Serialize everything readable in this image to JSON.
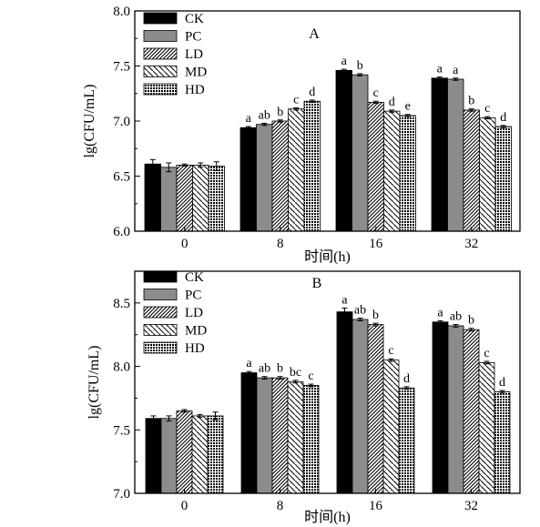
{
  "chart_data": [
    {
      "type": "bar",
      "panel_label": "A",
      "categories": [
        "0",
        "8",
        "16",
        "32"
      ],
      "series": [
        {
          "name": "CK",
          "values": [
            6.61,
            6.94,
            7.46,
            7.39
          ],
          "errors": [
            0.04,
            0.01,
            0.01,
            0.01
          ],
          "letters": [
            "",
            "a",
            "a",
            "a"
          ]
        },
        {
          "name": "PC",
          "values": [
            6.58,
            6.97,
            7.42,
            7.38
          ],
          "errors": [
            0.04,
            0.01,
            0.01,
            0.01
          ],
          "letters": [
            "",
            "ab",
            "b",
            "a"
          ]
        },
        {
          "name": "LD",
          "values": [
            6.6,
            7.0,
            7.17,
            7.1
          ],
          "errors": [
            0.01,
            0.01,
            0.01,
            0.01
          ],
          "letters": [
            "",
            "b",
            "c",
            "b"
          ]
        },
        {
          "name": "MD",
          "values": [
            6.6,
            7.11,
            7.09,
            7.03
          ],
          "errors": [
            0.02,
            0.01,
            0.01,
            0.01
          ],
          "letters": [
            "",
            "c",
            "d",
            "c"
          ]
        },
        {
          "name": "HD",
          "values": [
            6.59,
            7.18,
            7.05,
            6.95
          ],
          "errors": [
            0.04,
            0.01,
            0.01,
            0.01
          ],
          "letters": [
            "",
            "d",
            "e",
            "d"
          ]
        }
      ],
      "xlabel": "时间(h)",
      "ylabel": "lg(CFU/mL)",
      "ylim": [
        6.0,
        8.0
      ],
      "yticks": [
        "6.0",
        "6.5",
        "7.0",
        "7.5",
        "8.0"
      ],
      "legend_position": "top-left",
      "grid": false
    },
    {
      "type": "bar",
      "panel_label": "B",
      "categories": [
        "0",
        "8",
        "16",
        "32"
      ],
      "series": [
        {
          "name": "CK",
          "values": [
            7.59,
            7.95,
            8.43,
            8.35
          ],
          "errors": [
            0.02,
            0.01,
            0.03,
            0.01
          ],
          "letters": [
            "",
            "a",
            "a",
            "a"
          ]
        },
        {
          "name": "PC",
          "values": [
            7.59,
            7.91,
            8.37,
            8.32
          ],
          "errors": [
            0.02,
            0.01,
            0.01,
            0.01
          ],
          "letters": [
            "",
            "ab",
            "ab",
            "ab"
          ]
        },
        {
          "name": "LD",
          "values": [
            7.65,
            7.91,
            8.33,
            8.29
          ],
          "errors": [
            0.01,
            0.01,
            0.01,
            0.01
          ],
          "letters": [
            "",
            "b",
            "b",
            "b"
          ]
        },
        {
          "name": "MD",
          "values": [
            7.61,
            7.88,
            8.05,
            8.03
          ],
          "errors": [
            0.01,
            0.01,
            0.01,
            0.01
          ],
          "letters": [
            "",
            "bc",
            "c",
            "c"
          ]
        },
        {
          "name": "HD",
          "values": [
            7.61,
            7.85,
            7.83,
            7.8
          ],
          "errors": [
            0.03,
            0.01,
            0.01,
            0.01
          ],
          "letters": [
            "",
            "c",
            "d",
            "d"
          ]
        }
      ],
      "xlabel": "时间(h)",
      "ylabel": "lg(CFU/mL)",
      "ylim": [
        7.0,
        8.75
      ],
      "yticks": [
        "7.0",
        "7.5",
        "8.0",
        "8.5"
      ],
      "legend_position": "top-left",
      "grid": false
    }
  ]
}
